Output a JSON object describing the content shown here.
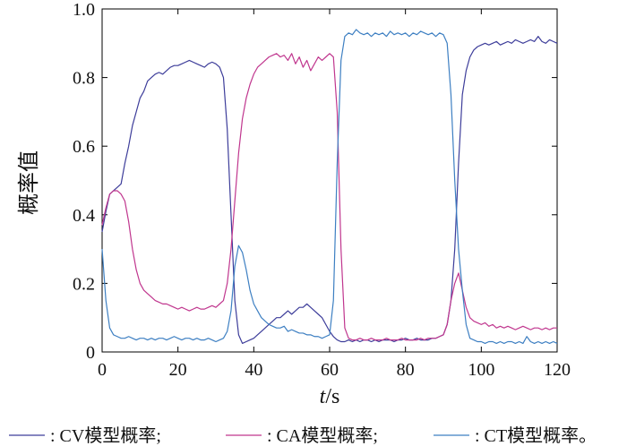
{
  "chart_data": {
    "type": "line",
    "xlabel_var": "t",
    "xlabel_sep": "/",
    "xlabel_unit": "s",
    "ylabel": "概率值",
    "xlim": [
      0,
      120
    ],
    "ylim": [
      0,
      1.0
    ],
    "x_ticks": [
      "0",
      "20",
      "40",
      "60",
      "80",
      "100",
      "120"
    ],
    "y_ticks": [
      "0",
      "0.2",
      "0.4",
      "0.6",
      "0.8",
      "1.0"
    ],
    "grid": false,
    "legend_position": "bottom",
    "series": [
      {
        "name": ": CV模型概率;",
        "color": "#3d3d9a",
        "x": [
          0,
          1,
          2,
          3,
          4,
          5,
          6,
          7,
          8,
          9,
          10,
          11,
          12,
          13,
          14,
          15,
          16,
          17,
          18,
          19,
          20,
          21,
          22,
          23,
          24,
          25,
          26,
          27,
          28,
          29,
          30,
          31,
          32,
          33,
          34,
          35,
          36,
          37,
          38,
          39,
          40,
          41,
          42,
          43,
          44,
          45,
          46,
          47,
          48,
          49,
          50,
          51,
          52,
          53,
          54,
          55,
          56,
          57,
          58,
          59,
          60,
          61,
          62,
          63,
          64,
          65,
          66,
          67,
          68,
          69,
          70,
          71,
          72,
          73,
          74,
          75,
          76,
          77,
          78,
          79,
          80,
          81,
          82,
          83,
          84,
          85,
          86,
          87,
          88,
          89,
          90,
          91,
          92,
          93,
          94,
          95,
          96,
          97,
          98,
          99,
          100,
          101,
          102,
          103,
          104,
          105,
          106,
          107,
          108,
          109,
          110,
          111,
          112,
          113,
          114,
          115,
          116,
          117,
          118,
          119,
          120
        ],
        "values": [
          0.35,
          0.41,
          0.46,
          0.47,
          0.48,
          0.49,
          0.55,
          0.6,
          0.66,
          0.7,
          0.74,
          0.76,
          0.79,
          0.8,
          0.81,
          0.815,
          0.81,
          0.82,
          0.83,
          0.835,
          0.835,
          0.84,
          0.845,
          0.85,
          0.845,
          0.84,
          0.835,
          0.83,
          0.84,
          0.845,
          0.84,
          0.83,
          0.8,
          0.65,
          0.4,
          0.15,
          0.05,
          0.025,
          0.03,
          0.035,
          0.04,
          0.05,
          0.06,
          0.07,
          0.08,
          0.09,
          0.1,
          0.1,
          0.11,
          0.12,
          0.11,
          0.12,
          0.13,
          0.13,
          0.14,
          0.13,
          0.12,
          0.11,
          0.1,
          0.08,
          0.06,
          0.045,
          0.035,
          0.03,
          0.03,
          0.035,
          0.03,
          0.035,
          0.03,
          0.035,
          0.035,
          0.03,
          0.035,
          0.03,
          0.035,
          0.035,
          0.035,
          0.03,
          0.035,
          0.035,
          0.04,
          0.035,
          0.035,
          0.04,
          0.035,
          0.035,
          0.035,
          0.04,
          0.04,
          0.045,
          0.05,
          0.08,
          0.15,
          0.3,
          0.55,
          0.75,
          0.82,
          0.86,
          0.88,
          0.89,
          0.895,
          0.9,
          0.895,
          0.9,
          0.905,
          0.895,
          0.9,
          0.905,
          0.9,
          0.91,
          0.905,
          0.9,
          0.905,
          0.91,
          0.905,
          0.92,
          0.905,
          0.9,
          0.91,
          0.905,
          0.9
        ]
      },
      {
        "name": ": CA模型概率;",
        "color": "#c0368e",
        "x": [
          0,
          1,
          2,
          3,
          4,
          5,
          6,
          7,
          8,
          9,
          10,
          11,
          12,
          13,
          14,
          15,
          16,
          17,
          18,
          19,
          20,
          21,
          22,
          23,
          24,
          25,
          26,
          27,
          28,
          29,
          30,
          31,
          32,
          33,
          34,
          35,
          36,
          37,
          38,
          39,
          40,
          41,
          42,
          43,
          44,
          45,
          46,
          47,
          48,
          49,
          50,
          51,
          52,
          53,
          54,
          55,
          56,
          57,
          58,
          59,
          60,
          61,
          62,
          63,
          64,
          65,
          66,
          67,
          68,
          69,
          70,
          71,
          72,
          73,
          74,
          75,
          76,
          77,
          78,
          79,
          80,
          81,
          82,
          83,
          84,
          85,
          86,
          87,
          88,
          89,
          90,
          91,
          92,
          93,
          94,
          95,
          96,
          97,
          98,
          99,
          100,
          101,
          102,
          103,
          104,
          105,
          106,
          107,
          108,
          109,
          110,
          111,
          112,
          113,
          114,
          115,
          116,
          117,
          118,
          119,
          120
        ],
        "values": [
          0.37,
          0.42,
          0.46,
          0.47,
          0.47,
          0.46,
          0.44,
          0.38,
          0.3,
          0.24,
          0.2,
          0.18,
          0.17,
          0.16,
          0.15,
          0.145,
          0.14,
          0.14,
          0.135,
          0.13,
          0.125,
          0.13,
          0.125,
          0.12,
          0.125,
          0.13,
          0.125,
          0.125,
          0.13,
          0.135,
          0.13,
          0.14,
          0.15,
          0.2,
          0.3,
          0.44,
          0.58,
          0.68,
          0.74,
          0.78,
          0.81,
          0.83,
          0.84,
          0.85,
          0.86,
          0.865,
          0.87,
          0.86,
          0.865,
          0.85,
          0.87,
          0.84,
          0.86,
          0.83,
          0.85,
          0.82,
          0.84,
          0.86,
          0.85,
          0.86,
          0.87,
          0.86,
          0.7,
          0.3,
          0.07,
          0.04,
          0.035,
          0.035,
          0.04,
          0.035,
          0.035,
          0.04,
          0.035,
          0.035,
          0.035,
          0.04,
          0.035,
          0.035,
          0.035,
          0.04,
          0.035,
          0.035,
          0.035,
          0.035,
          0.04,
          0.035,
          0.04,
          0.04,
          0.04,
          0.045,
          0.05,
          0.08,
          0.15,
          0.2,
          0.23,
          0.18,
          0.13,
          0.1,
          0.09,
          0.085,
          0.08,
          0.085,
          0.075,
          0.08,
          0.07,
          0.075,
          0.07,
          0.075,
          0.07,
          0.065,
          0.07,
          0.075,
          0.07,
          0.065,
          0.07,
          0.07,
          0.065,
          0.07,
          0.065,
          0.07,
          0.07
        ]
      },
      {
        "name": ": CT模型概率。",
        "color": "#3d7fc2",
        "x": [
          0,
          1,
          2,
          3,
          4,
          5,
          6,
          7,
          8,
          9,
          10,
          11,
          12,
          13,
          14,
          15,
          16,
          17,
          18,
          19,
          20,
          21,
          22,
          23,
          24,
          25,
          26,
          27,
          28,
          29,
          30,
          31,
          32,
          33,
          34,
          35,
          36,
          37,
          38,
          39,
          40,
          41,
          42,
          43,
          44,
          45,
          46,
          47,
          48,
          49,
          50,
          51,
          52,
          53,
          54,
          55,
          56,
          57,
          58,
          59,
          60,
          61,
          62,
          63,
          64,
          65,
          66,
          67,
          68,
          69,
          70,
          71,
          72,
          73,
          74,
          75,
          76,
          77,
          78,
          79,
          80,
          81,
          82,
          83,
          84,
          85,
          86,
          87,
          88,
          89,
          90,
          91,
          92,
          93,
          94,
          95,
          96,
          97,
          98,
          99,
          100,
          101,
          102,
          103,
          104,
          105,
          106,
          107,
          108,
          109,
          110,
          111,
          112,
          113,
          114,
          115,
          116,
          117,
          118,
          119,
          120
        ],
        "values": [
          0.3,
          0.15,
          0.07,
          0.05,
          0.045,
          0.04,
          0.04,
          0.045,
          0.04,
          0.035,
          0.04,
          0.04,
          0.035,
          0.04,
          0.035,
          0.04,
          0.04,
          0.035,
          0.04,
          0.045,
          0.04,
          0.035,
          0.04,
          0.04,
          0.035,
          0.04,
          0.035,
          0.035,
          0.04,
          0.035,
          0.03,
          0.035,
          0.04,
          0.06,
          0.12,
          0.25,
          0.31,
          0.29,
          0.24,
          0.18,
          0.14,
          0.12,
          0.1,
          0.09,
          0.08,
          0.075,
          0.07,
          0.07,
          0.075,
          0.06,
          0.065,
          0.06,
          0.055,
          0.055,
          0.05,
          0.05,
          0.045,
          0.045,
          0.04,
          0.045,
          0.05,
          0.15,
          0.55,
          0.85,
          0.92,
          0.93,
          0.925,
          0.94,
          0.93,
          0.925,
          0.93,
          0.92,
          0.93,
          0.925,
          0.93,
          0.92,
          0.935,
          0.925,
          0.93,
          0.925,
          0.93,
          0.92,
          0.93,
          0.925,
          0.935,
          0.93,
          0.925,
          0.93,
          0.92,
          0.93,
          0.925,
          0.9,
          0.75,
          0.5,
          0.3,
          0.18,
          0.08,
          0.04,
          0.035,
          0.03,
          0.03,
          0.025,
          0.03,
          0.03,
          0.025,
          0.03,
          0.025,
          0.03,
          0.03,
          0.025,
          0.03,
          0.025,
          0.045,
          0.03,
          0.025,
          0.03,
          0.025,
          0.03,
          0.025,
          0.03,
          0.025
        ]
      }
    ]
  }
}
